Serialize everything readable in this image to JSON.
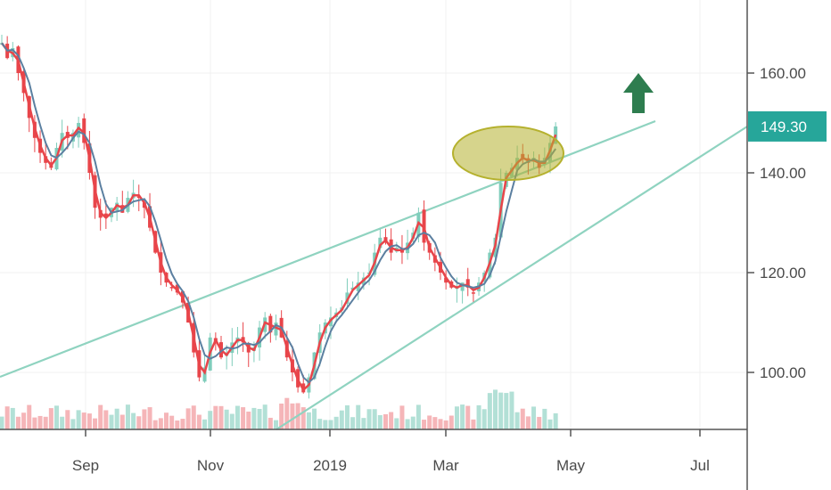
{
  "chart_data": {
    "type": "candlestick",
    "x_tick_labels": [
      "Sep",
      "Nov",
      "2019",
      "Mar",
      "May",
      "Jul"
    ],
    "y_tick_labels": [
      "160.00",
      "140.00",
      "120.00",
      "100.00"
    ],
    "y_ticks": [
      160,
      140,
      120,
      100
    ],
    "ylim": [
      88,
      176
    ],
    "last_price": "149.30",
    "last_price_value": 149.3,
    "colors": {
      "up": "#7fcdbb",
      "down": "#e8454a",
      "volume_up": "#9fd8cc",
      "volume_down": "#f2a3a6",
      "ma_fast": "#e8454a",
      "ma_slow": "#5b7fa0",
      "trendline": "#8fd3c0",
      "price_tag": "#26a69a",
      "highlight": "#b5b12e",
      "arrow": "#2e7d4f"
    },
    "price_series": [
      [
        0,
        166
      ],
      [
        0.5,
        163
      ],
      [
        1,
        165
      ],
      [
        1.5,
        160
      ],
      [
        2,
        156
      ],
      [
        2.5,
        151
      ],
      [
        3,
        147
      ],
      [
        3.5,
        144
      ],
      [
        4,
        142
      ],
      [
        4.5,
        141
      ],
      [
        5,
        145
      ],
      [
        5.5,
        148
      ],
      [
        6,
        147
      ],
      [
        6.5,
        148
      ],
      [
        7,
        150
      ],
      [
        7.5,
        146
      ],
      [
        8,
        140
      ],
      [
        8.5,
        133
      ],
      [
        9,
        131
      ],
      [
        9.5,
        131
      ],
      [
        10,
        133
      ],
      [
        10.5,
        134
      ],
      [
        11,
        132
      ],
      [
        11.5,
        135
      ],
      [
        12,
        136
      ],
      [
        12.5,
        135
      ],
      [
        13,
        133
      ],
      [
        13.5,
        129
      ],
      [
        14,
        124
      ],
      [
        14.5,
        120
      ],
      [
        15,
        118
      ],
      [
        15.5,
        117
      ],
      [
        16,
        116
      ],
      [
        16.5,
        114
      ],
      [
        17,
        110
      ],
      [
        17.5,
        104
      ],
      [
        18,
        99
      ],
      [
        18.5,
        101
      ],
      [
        19,
        107
      ],
      [
        19.5,
        106
      ],
      [
        20,
        103
      ],
      [
        20.5,
        104
      ],
      [
        21,
        106
      ],
      [
        21.5,
        107
      ],
      [
        22,
        106
      ],
      [
        22.5,
        104
      ],
      [
        23,
        105
      ],
      [
        23.5,
        109
      ],
      [
        24,
        111
      ],
      [
        24.5,
        108
      ],
      [
        25,
        110
      ],
      [
        25.5,
        107
      ],
      [
        26,
        103
      ],
      [
        26.5,
        100
      ],
      [
        27,
        97
      ],
      [
        27.5,
        96
      ],
      [
        28,
        99
      ],
      [
        28.5,
        104
      ],
      [
        29,
        108
      ],
      [
        29.5,
        110
      ],
      [
        30,
        111
      ],
      [
        30.5,
        112
      ],
      [
        31,
        113
      ],
      [
        31.5,
        116
      ],
      [
        32,
        117
      ],
      [
        32.5,
        118
      ],
      [
        33,
        119
      ],
      [
        33.5,
        120
      ],
      [
        34,
        124
      ],
      [
        34.5,
        127
      ],
      [
        35,
        126
      ],
      [
        35.5,
        124
      ],
      [
        36,
        125
      ],
      [
        36.5,
        124
      ],
      [
        37,
        126
      ],
      [
        37.5,
        128
      ],
      [
        38,
        132
      ],
      [
        38.5,
        126
      ],
      [
        39,
        124
      ],
      [
        39.5,
        122
      ],
      [
        40,
        120
      ],
      [
        40.5,
        118
      ],
      [
        41,
        117
      ],
      [
        41.5,
        117
      ],
      [
        42,
        118
      ],
      [
        42.5,
        117
      ],
      [
        43,
        116
      ],
      [
        43.5,
        118
      ],
      [
        44,
        120
      ],
      [
        44.5,
        124
      ],
      [
        45,
        127
      ],
      [
        45.5,
        138
      ],
      [
        46,
        140
      ],
      [
        46.5,
        141
      ],
      [
        47,
        143
      ],
      [
        47.5,
        143
      ],
      [
        48,
        142
      ],
      [
        48.5,
        143
      ],
      [
        49,
        141
      ],
      [
        49.5,
        143
      ],
      [
        50,
        146
      ],
      [
        50.5,
        149.3
      ]
    ],
    "trendline_upper": [
      [
        0,
        98
      ],
      [
        57,
        149
      ]
    ],
    "trendline_lower": [
      [
        24,
        88
      ],
      [
        65,
        149
      ]
    ]
  }
}
